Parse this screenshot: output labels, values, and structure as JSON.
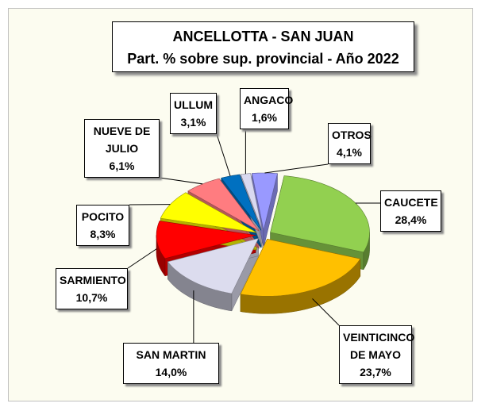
{
  "chart_data": {
    "type": "pie3d",
    "title": "ANCELLOTTA  - SAN JUAN",
    "subtitle": "Part. % sobre sup. provincial  - Año 2022",
    "categories": [
      "CAUCETE",
      "VEINTICINCO DE MAYO",
      "SAN MARTIN",
      "SARMIENTO",
      "POCITO",
      "NUEVE DE JULIO",
      "ULLUM",
      "ANGACO",
      "OTROS"
    ],
    "values": [
      28.4,
      23.7,
      14.0,
      10.7,
      8.3,
      6.1,
      3.1,
      1.6,
      4.1
    ],
    "value_labels": [
      "28,4%",
      "23,7%",
      "14,0%",
      "10,7%",
      "8,3%",
      "6,1%",
      "3,1%",
      "1,6%",
      "4,1%"
    ],
    "colors": [
      "#92d050",
      "#ffc000",
      "#dcdcee",
      "#ff0000",
      "#ffff00",
      "#ff7c80",
      "#0070c0",
      "#d9d9f0",
      "#9999ff"
    ]
  }
}
